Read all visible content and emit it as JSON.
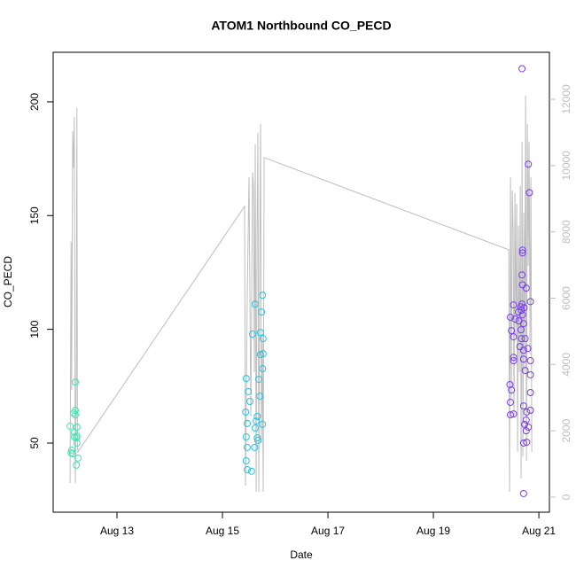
{
  "chart_data": {
    "type": "scatter",
    "title": "ATOM1 Northbound CO_PECD",
    "xlabel": "Date",
    "ylabel": "CO_PECD",
    "xlim": [
      11.79,
      21.2
    ],
    "xticks": [
      {
        "value": 13,
        "label": "Aug 13"
      },
      {
        "value": 15,
        "label": "Aug 15"
      },
      {
        "value": 17,
        "label": "Aug 17"
      },
      {
        "value": 19,
        "label": "Aug 19"
      },
      {
        "value": 21,
        "label": "Aug 21"
      }
    ],
    "ylim": [
      19.6,
      221.8
    ],
    "yticks": [
      50,
      100,
      150,
      200
    ],
    "y2lim": [
      -455,
      13417
    ],
    "y2ticks": [
      0,
      2000,
      4000,
      6000,
      8000,
      10000,
      12000
    ],
    "grid": false,
    "series": [
      {
        "type": "line",
        "axis": "y2",
        "color": "#bebebe",
        "x": [
          12.11,
          12.13,
          12.14,
          12.16,
          12.18,
          12.19,
          12.21,
          12.23,
          12.24,
          12.25,
          12.26,
          15.42,
          15.437,
          15.471,
          15.504,
          15.538,
          15.571,
          15.588,
          15.605,
          15.622,
          15.639,
          15.655,
          15.672,
          15.689,
          15.706,
          15.723,
          15.739,
          15.756,
          15.773,
          15.79,
          20.429,
          20.445,
          20.462,
          20.479,
          20.496,
          20.513,
          20.529,
          20.546,
          20.563,
          20.58,
          20.597,
          20.613,
          20.63,
          20.647,
          20.664,
          20.681,
          20.697,
          20.714,
          20.731,
          20.748,
          20.765,
          20.782,
          20.798,
          20.815,
          20.832,
          20.849,
          20.866
        ],
        "values": [
          428,
          7700,
          3236,
          11043,
          9921,
          11471,
          428,
          4305,
          11739,
          1631,
          1364,
          8771,
          348,
          6177,
          9653,
          2433,
          9787,
          9386,
          3770,
          10643,
          160,
          7781,
          10990,
          160,
          6979,
          11257,
          1631,
          4840,
          160,
          10241,
          7460,
          160,
          9653,
          2968,
          9252,
          8049,
          2433,
          9172,
          4840,
          8851,
          1364,
          8182,
          3770,
          9386,
          562,
          10723,
          1230,
          8583,
          3770,
          12113,
          1096,
          11257,
          6979,
          10723,
          4305,
          9653,
          1364
        ]
      },
      {
        "color": "#3ee6b0",
        "x": [
          12.11,
          12.14,
          12.18,
          12.19,
          12.21,
          12.21,
          12.23,
          12.24,
          12.24,
          12.26,
          12.23,
          12.16,
          12.13,
          12.19,
          12.24,
          12.21
        ],
        "values": [
          57.4,
          46.9,
          63.2,
          54.7,
          76.8,
          64.4,
          52.3,
          57,
          50,
          43.4,
          40.3,
          45.3,
          45.7,
          52.7,
          53.1,
          62.4
        ]
      },
      {
        "color": "#22c4e6",
        "x": [
          15.45,
          15.49,
          15.44,
          15.47,
          15.45,
          15.47,
          15.45,
          15.47,
          15.52,
          15.57,
          15.62,
          15.64,
          15.66,
          15.66,
          15.67,
          15.69,
          15.71,
          15.72,
          15.74,
          15.76,
          15.76,
          15.77,
          15.77,
          15.76,
          15.55,
          15.62,
          15.61,
          15.72
        ],
        "values": [
          78.4,
          72.6,
          63.6,
          58.6,
          52.7,
          48.1,
          42.2,
          38.3,
          68.3,
          97.9,
          111.1,
          59.7,
          52.3,
          61.7,
          51.2,
          78,
          70.6,
          98.6,
          107.6,
          115,
          82.7,
          89.3,
          95.9,
          58.2,
          37.6,
          56.6,
          48.1,
          88.9
        ]
      },
      {
        "color": "#7a3cf0",
        "x": [
          20.68,
          20.8,
          20.82,
          20.69,
          20.69,
          20.68,
          20.69,
          20.76,
          20.84,
          20.52,
          20.68,
          20.72,
          20.66,
          20.67,
          20.69,
          20.61,
          20.46,
          20.55,
          20.62,
          20.71,
          20.48,
          20.66,
          20.52,
          20.67,
          20.74,
          20.64,
          20.79,
          20.71,
          20.52,
          20.52,
          20.84,
          20.71,
          20.74,
          20.84,
          20.45,
          20.48,
          20.84,
          20.46,
          20.71,
          20.77,
          20.46,
          20.52,
          20.84,
          20.76,
          20.8,
          20.73,
          20.76,
          20.77,
          20.71,
          20.71
        ],
        "values": [
          214.6,
          172.6,
          160.1,
          134.8,
          133.6,
          123.9,
          119.6,
          118.1,
          112.2,
          110.7,
          111.1,
          109.5,
          109.9,
          108.4,
          106.4,
          107.6,
          105.3,
          104.5,
          103.7,
          102.5,
          99.4,
          99.8,
          96.7,
          95.9,
          95.9,
          92.4,
          91.6,
          90.8,
          87.7,
          86.2,
          86.2,
          86.9,
          81.9,
          80,
          75.7,
          73.3,
          72.2,
          67.9,
          66.3,
          63.6,
          62.4,
          62.8,
          64.4,
          60.1,
          57,
          58.2,
          55.4,
          50.4,
          50,
          27.8
        ]
      }
    ]
  }
}
